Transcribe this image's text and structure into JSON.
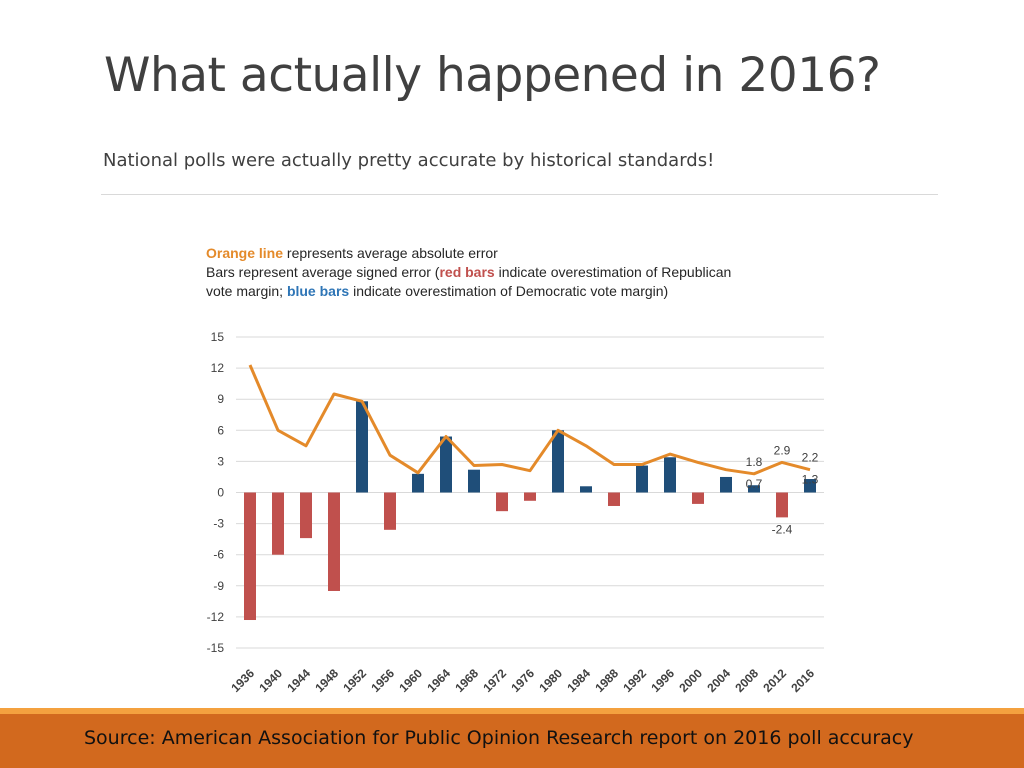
{
  "slide": {
    "title": "What actually happened in 2016?",
    "subtitle": "National polls were actually pretty accurate by historical standards!",
    "source": "Source: American Association for Public Opinion Research report on 2016 poll accuracy"
  },
  "colors": {
    "orange_line": "#e48a2a",
    "red_bar": "#c0504d",
    "blue_bar": "#1f4e79",
    "footer_bg": "#d2691e",
    "footer_accent": "#f4a13f",
    "grid": "#d9d9d9"
  },
  "chart_data": {
    "type": "bar",
    "legend": {
      "line1_highlight": "Orange line",
      "line1_rest": " represents average absolute error",
      "line2_prefix": "Bars represent average signed error (",
      "line2_highlight": "red bars",
      "line2_rest": " indicate overestimation of Republican",
      "line3_prefix": "vote margin; ",
      "line3_highlight": "blue bars",
      "line3_rest": " indicate overestimation of Democratic vote margin)"
    },
    "categories": [
      "1936",
      "1940",
      "1944",
      "1948",
      "1952",
      "1956",
      "1960",
      "1964",
      "1968",
      "1972",
      "1976",
      "1980",
      "1984",
      "1988",
      "1992",
      "1996",
      "2000",
      "2004",
      "2008",
      "2012",
      "2016"
    ],
    "series": [
      {
        "type": "bar",
        "values": [
          -12.3,
          -6.0,
          -4.4,
          -9.5,
          8.8,
          -3.6,
          1.8,
          5.4,
          2.2,
          -1.8,
          -0.8,
          6.0,
          0.6,
          -1.3,
          2.6,
          3.4,
          -1.1,
          1.5,
          0.7,
          -2.4,
          1.3
        ]
      },
      {
        "type": "line",
        "values": [
          12.3,
          6.0,
          4.5,
          9.5,
          8.8,
          3.6,
          1.9,
          5.4,
          2.6,
          2.7,
          2.1,
          6.0,
          4.5,
          2.7,
          2.7,
          3.7,
          2.9,
          2.2,
          1.8,
          2.9,
          2.2
        ]
      }
    ],
    "ylim": [
      -15,
      15
    ],
    "yticks": [
      "15",
      "12",
      "9",
      "6",
      "3",
      "0",
      "-3",
      "-6",
      "-9",
      "-12",
      "-15"
    ],
    "grid": true,
    "annotations": [
      {
        "year": "2008",
        "line_label": "1.8",
        "bar_label": "0.7"
      },
      {
        "year": "2012",
        "line_label": "2.9",
        "bar_label": "-2.4"
      },
      {
        "year": "2016",
        "line_label": "2.2",
        "bar_label": "1.3"
      }
    ]
  }
}
